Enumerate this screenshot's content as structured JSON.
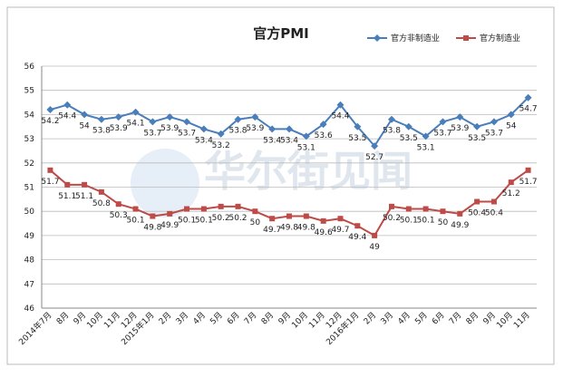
{
  "chart_data": {
    "type": "line",
    "title": "官方PMI",
    "watermark": "华尔街见闻",
    "categories": [
      "2014年7月",
      "8月",
      "9月",
      "10月",
      "11月",
      "12月",
      "2015年1月",
      "2月",
      "3月",
      "4月",
      "5月",
      "6月",
      "7月",
      "8月",
      "9月",
      "10月",
      "11月",
      "12月",
      "2016年1月",
      "2月",
      "3月",
      "4月",
      "5月",
      "6月",
      "7月",
      "8月",
      "9月",
      "10月",
      "11月"
    ],
    "series": [
      {
        "name": "官方非制造业",
        "color": "#4a7ebb",
        "marker": "diamond",
        "values": [
          54.2,
          54.4,
          54,
          53.8,
          53.9,
          54.1,
          53.7,
          53.9,
          53.7,
          53.4,
          53.2,
          53.8,
          53.9,
          53.4,
          53.4,
          53.1,
          53.6,
          54.4,
          53.5,
          52.7,
          53.8,
          53.5,
          53.1,
          53.7,
          53.9,
          53.5,
          53.7,
          54,
          54.7
        ]
      },
      {
        "name": "官方制造业",
        "color": "#be4b48",
        "marker": "square",
        "values": [
          51.7,
          51.1,
          51.1,
          50.8,
          50.3,
          50.1,
          49.8,
          49.9,
          50.1,
          50.1,
          50.2,
          50.2,
          50,
          49.7,
          49.8,
          49.8,
          49.6,
          49.7,
          49.4,
          49,
          50.2,
          50.1,
          50.1,
          50,
          49.9,
          50.4,
          50.4,
          51.2,
          51.7
        ]
      }
    ],
    "ylim": [
      46,
      56
    ],
    "yticks": [
      46,
      47,
      48,
      49,
      50,
      51,
      52,
      53,
      54,
      55,
      56
    ],
    "grid": true,
    "legend": "top-right"
  }
}
